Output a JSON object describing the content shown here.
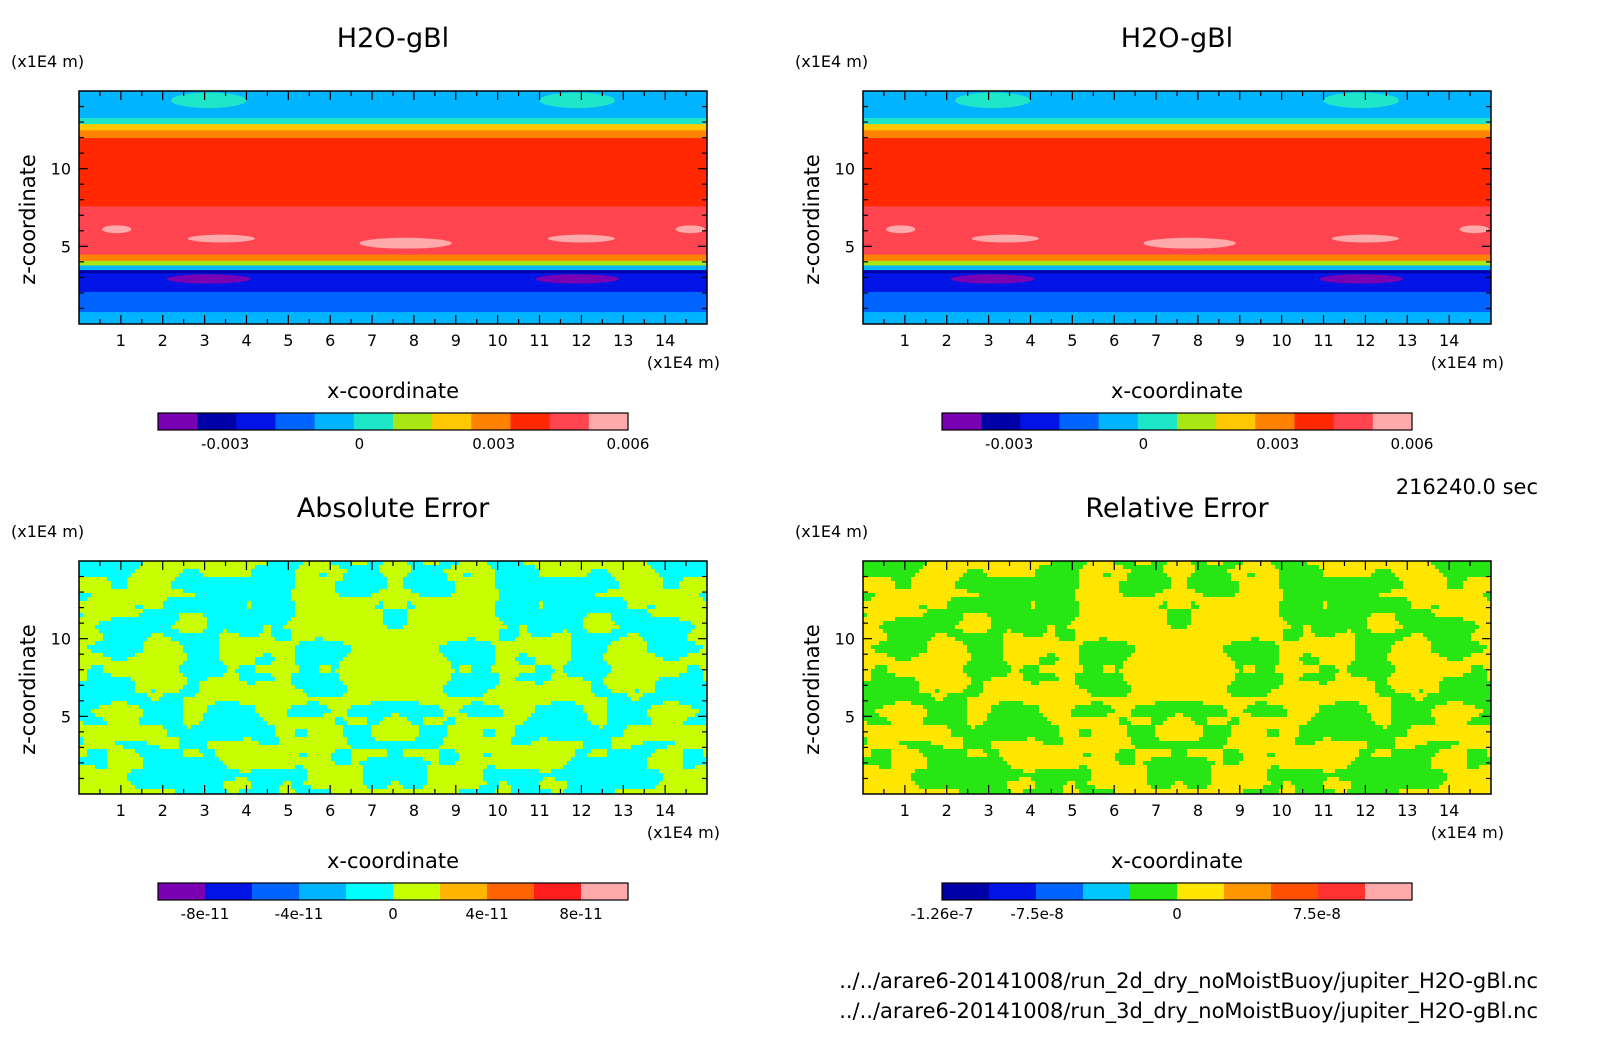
{
  "time_label": "216240.0 sec",
  "files": [
    "../../arare6-20141008/run_2d_dry_noMoistBuoy/jupiter_H2O-gBl.nc",
    "../../arare6-20141008/run_3d_dry_noMoistBuoy/jupiter_H2O-gBl.nc"
  ],
  "chart_data": [
    {
      "type": "heatmap",
      "title": "H2O-gBl",
      "xlabel": "x-coordinate",
      "ylabel": "z-coordinate",
      "x_unit": "(x1E4 m)",
      "y_unit": "(x1E4 m)",
      "xlim": [
        0,
        15
      ],
      "ylim": [
        0,
        15
      ],
      "xticks": [
        1,
        2,
        3,
        4,
        5,
        6,
        7,
        8,
        9,
        10,
        11,
        12,
        13,
        14
      ],
      "yticks": [
        5,
        10
      ],
      "colorbar": {
        "colors": [
          "#7a00b4",
          "#0000a8",
          "#0014e6",
          "#0064ff",
          "#00b4ff",
          "#1ee6c8",
          "#a8e614",
          "#ffc800",
          "#ff8200",
          "#ff2800",
          "#ff4650",
          "#ffaaaa"
        ],
        "ticks": [
          -0.003,
          0,
          0.003,
          0.006
        ],
        "tick_labels": [
          "-0.003",
          "0",
          "0.003",
          "0.006"
        ],
        "vmin": -0.0045,
        "vmax": 0.006
      },
      "bands": [
        {
          "z_from": 0.0,
          "z_to": 0.8,
          "color": "#00b4ff"
        },
        {
          "z_from": 0.8,
          "z_to": 2.1,
          "color": "#0064ff"
        },
        {
          "z_from": 2.1,
          "z_to": 3.3,
          "color": "#0014e6"
        },
        {
          "z_from": 3.3,
          "z_to": 3.5,
          "color": "#0000a8"
        },
        {
          "z_from": 3.5,
          "z_to": 3.8,
          "color": "#00b4ff"
        },
        {
          "z_from": 3.8,
          "z_to": 4.1,
          "color": "#a8e614"
        },
        {
          "z_from": 4.1,
          "z_to": 4.5,
          "color": "#ff8200"
        },
        {
          "z_from": 4.5,
          "z_to": 7.6,
          "color": "#ff4650"
        },
        {
          "z_from": 7.6,
          "z_to": 12.0,
          "color": "#ff2800"
        },
        {
          "z_from": 12.0,
          "z_to": 12.5,
          "color": "#ff8200"
        },
        {
          "z_from": 12.5,
          "z_to": 12.9,
          "color": "#ffc800"
        },
        {
          "z_from": 12.9,
          "z_to": 13.3,
          "color": "#1ee6c8"
        },
        {
          "z_from": 13.3,
          "z_to": 15.0,
          "color": "#00b4ff"
        }
      ],
      "blobs": [
        {
          "x": 7.8,
          "z": 5.2,
          "rx": 1.1,
          "rz": 0.35,
          "color": "#ffaaaa"
        },
        {
          "x": 3.4,
          "z": 5.5,
          "rx": 0.8,
          "rz": 0.25,
          "color": "#ffaaaa"
        },
        {
          "x": 12.0,
          "z": 5.5,
          "rx": 0.8,
          "rz": 0.25,
          "color": "#ffaaaa"
        },
        {
          "x": 0.9,
          "z": 6.1,
          "rx": 0.35,
          "rz": 0.25,
          "color": "#ffaaaa"
        },
        {
          "x": 14.6,
          "z": 6.1,
          "rx": 0.35,
          "rz": 0.25,
          "color": "#ffaaaa"
        },
        {
          "x": 3.1,
          "z": 2.9,
          "rx": 1.0,
          "rz": 0.3,
          "color": "#7a00b4"
        },
        {
          "x": 11.9,
          "z": 2.9,
          "rx": 1.0,
          "rz": 0.3,
          "color": "#7a00b4"
        },
        {
          "x": 3.1,
          "z": 14.4,
          "rx": 0.9,
          "rz": 0.5,
          "color": "#1ee6c8"
        },
        {
          "x": 11.9,
          "z": 14.4,
          "rx": 0.9,
          "rz": 0.5,
          "color": "#1ee6c8"
        }
      ]
    },
    {
      "type": "heatmap",
      "title": "H2O-gBl",
      "xlabel": "x-coordinate",
      "ylabel": "z-coordinate",
      "x_unit": "(x1E4 m)",
      "y_unit": "(x1E4 m)",
      "xlim": [
        0,
        15
      ],
      "ylim": [
        0,
        15
      ],
      "xticks": [
        1,
        2,
        3,
        4,
        5,
        6,
        7,
        8,
        9,
        10,
        11,
        12,
        13,
        14
      ],
      "yticks": [
        5,
        10
      ],
      "colorbar": {
        "colors": [
          "#7a00b4",
          "#0000a8",
          "#0014e6",
          "#0064ff",
          "#00b4ff",
          "#1ee6c8",
          "#a8e614",
          "#ffc800",
          "#ff8200",
          "#ff2800",
          "#ff4650",
          "#ffaaaa"
        ],
        "ticks": [
          -0.003,
          0,
          0.003,
          0.006
        ],
        "tick_labels": [
          "-0.003",
          "0",
          "0.003",
          "0.006"
        ],
        "vmin": -0.0045,
        "vmax": 0.006
      },
      "bands": [
        {
          "z_from": 0.0,
          "z_to": 0.8,
          "color": "#00b4ff"
        },
        {
          "z_from": 0.8,
          "z_to": 2.1,
          "color": "#0064ff"
        },
        {
          "z_from": 2.1,
          "z_to": 3.3,
          "color": "#0014e6"
        },
        {
          "z_from": 3.3,
          "z_to": 3.5,
          "color": "#0000a8"
        },
        {
          "z_from": 3.5,
          "z_to": 3.8,
          "color": "#00b4ff"
        },
        {
          "z_from": 3.8,
          "z_to": 4.1,
          "color": "#a8e614"
        },
        {
          "z_from": 4.1,
          "z_to": 4.5,
          "color": "#ff8200"
        },
        {
          "z_from": 4.5,
          "z_to": 7.6,
          "color": "#ff4650"
        },
        {
          "z_from": 7.6,
          "z_to": 12.0,
          "color": "#ff2800"
        },
        {
          "z_from": 12.0,
          "z_to": 12.5,
          "color": "#ff8200"
        },
        {
          "z_from": 12.5,
          "z_to": 12.9,
          "color": "#ffc800"
        },
        {
          "z_from": 12.9,
          "z_to": 13.3,
          "color": "#1ee6c8"
        },
        {
          "z_from": 13.3,
          "z_to": 15.0,
          "color": "#00b4ff"
        }
      ],
      "blobs": [
        {
          "x": 7.8,
          "z": 5.2,
          "rx": 1.1,
          "rz": 0.35,
          "color": "#ffaaaa"
        },
        {
          "x": 3.4,
          "z": 5.5,
          "rx": 0.8,
          "rz": 0.25,
          "color": "#ffaaaa"
        },
        {
          "x": 12.0,
          "z": 5.5,
          "rx": 0.8,
          "rz": 0.25,
          "color": "#ffaaaa"
        },
        {
          "x": 0.9,
          "z": 6.1,
          "rx": 0.35,
          "rz": 0.25,
          "color": "#ffaaaa"
        },
        {
          "x": 14.6,
          "z": 6.1,
          "rx": 0.35,
          "rz": 0.25,
          "color": "#ffaaaa"
        },
        {
          "x": 3.1,
          "z": 2.9,
          "rx": 1.0,
          "rz": 0.3,
          "color": "#7a00b4"
        },
        {
          "x": 11.9,
          "z": 2.9,
          "rx": 1.0,
          "rz": 0.3,
          "color": "#7a00b4"
        },
        {
          "x": 3.1,
          "z": 14.4,
          "rx": 0.9,
          "rz": 0.5,
          "color": "#1ee6c8"
        },
        {
          "x": 11.9,
          "z": 14.4,
          "rx": 0.9,
          "rz": 0.5,
          "color": "#1ee6c8"
        }
      ]
    },
    {
      "type": "heatmap",
      "title": "Absolute Error",
      "xlabel": "x-coordinate",
      "ylabel": "z-coordinate",
      "x_unit": "(x1E4 m)",
      "y_unit": "(x1E4 m)",
      "xlim": [
        0,
        15
      ],
      "ylim": [
        0,
        15
      ],
      "xticks": [
        1,
        2,
        3,
        4,
        5,
        6,
        7,
        8,
        9,
        10,
        11,
        12,
        13,
        14
      ],
      "yticks": [
        5,
        10
      ],
      "colorbar": {
        "colors": [
          "#7a00b4",
          "#0014e6",
          "#0064ff",
          "#00b4ff",
          "#00ffff",
          "#c8ff00",
          "#ffb400",
          "#ff6400",
          "#ff1e1e",
          "#ffaaaa"
        ],
        "ticks": [
          -8e-11,
          -4e-11,
          0,
          4e-11,
          8e-11
        ],
        "tick_labels": [
          "-8e-11",
          "-4e-11",
          "0",
          "4e-11",
          "8e-11"
        ],
        "vmin": -1e-10,
        "vmax": 1e-10
      },
      "pattern": {
        "low": "#00ffff",
        "high": "#c8ff00"
      }
    },
    {
      "type": "heatmap",
      "title": "Relative Error",
      "xlabel": "x-coordinate",
      "ylabel": "z-coordinate",
      "x_unit": "(x1E4 m)",
      "y_unit": "(x1E4 m)",
      "xlim": [
        0,
        15
      ],
      "ylim": [
        0,
        15
      ],
      "xticks": [
        1,
        2,
        3,
        4,
        5,
        6,
        7,
        8,
        9,
        10,
        11,
        12,
        13,
        14
      ],
      "yticks": [
        5,
        10
      ],
      "colorbar": {
        "colors": [
          "#0000a8",
          "#0014e6",
          "#0064ff",
          "#00c8ff",
          "#28e614",
          "#ffe600",
          "#ff9600",
          "#ff5000",
          "#ff3232",
          "#ffaaaa"
        ],
        "ticks": [
          -1.26e-07,
          -7.5e-08,
          0,
          7.5e-08
        ],
        "tick_labels": [
          "-1.26e-7",
          "-7.5e-8",
          "0",
          "7.5e-8"
        ],
        "vmin": -1.26e-07,
        "vmax": 1.26e-07
      },
      "pattern": {
        "low": "#28e614",
        "high": "#ffe600"
      }
    }
  ]
}
